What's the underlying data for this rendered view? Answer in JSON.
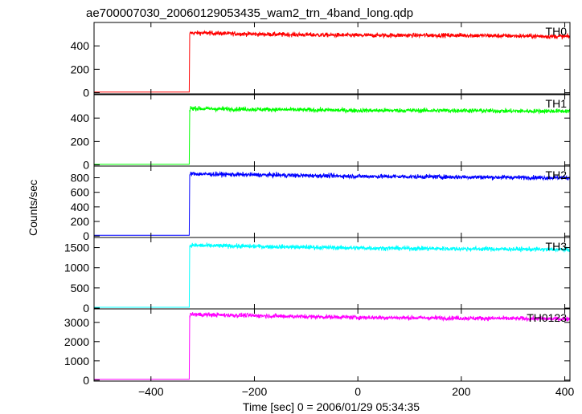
{
  "chart_data": {
    "type": "line",
    "title": "ae700007030_20060129053435_wam2_trn_4band_long.qdp",
    "xlabel": "Time [sec] 0 = 2006/01/29 05:34:35",
    "ylabel": "Counts/sec",
    "xlim": [
      -510,
      410
    ],
    "x_ticks": [
      -400,
      -200,
      0,
      200,
      400
    ],
    "x_tick_labels": [
      "−400",
      "−200",
      "0",
      "200",
      "400"
    ],
    "grid": false,
    "legend": "none",
    "onset_time": -325,
    "panels": [
      {
        "label": "TH0",
        "color": "#ff0000",
        "ylim": [
          -10,
          600
        ],
        "y_ticks": [
          0,
          200,
          400
        ],
        "series": [
          {
            "x": [
              -510,
              -326,
              -325,
              -323,
              -300,
              -200,
              -100,
              0,
              100,
              200,
              300,
              400
            ],
            "values": [
              5,
              5,
              500,
              510,
              510,
              500,
              495,
              490,
              490,
              490,
              485,
              480
            ]
          }
        ]
      },
      {
        "label": "TH1",
        "color": "#00ff00",
        "ylim": [
          -10,
          600
        ],
        "y_ticks": [
          0,
          200,
          400
        ],
        "series": [
          {
            "x": [
              -510,
              -326,
              -325,
              -323,
              -300,
              -200,
              -100,
              0,
              100,
              200,
              300,
              400
            ],
            "values": [
              5,
              5,
              470,
              485,
              480,
              475,
              470,
              465,
              465,
              465,
              460,
              460
            ]
          }
        ]
      },
      {
        "label": "TH2",
        "color": "#0000ff",
        "ylim": [
          -20,
          960
        ],
        "y_ticks": [
          0,
          200,
          400,
          600,
          800
        ],
        "series": [
          {
            "x": [
              -510,
              -326,
              -325,
              -323,
              -300,
              -200,
              -100,
              0,
              100,
              200,
              300,
              400
            ],
            "values": [
              10,
              10,
              840,
              855,
              850,
              840,
              830,
              820,
              815,
              810,
              805,
              800
            ]
          }
        ]
      },
      {
        "label": "TH3",
        "color": "#00ffff",
        "ylim": [
          -20,
          1750
        ],
        "y_ticks": [
          0,
          500,
          1000,
          1500
        ],
        "series": [
          {
            "x": [
              -510,
              -326,
              -325,
              -323,
              -300,
              -200,
              -100,
              0,
              100,
              200,
              300,
              400
            ],
            "values": [
              20,
              20,
              1530,
              1560,
              1550,
              1530,
              1510,
              1490,
              1480,
              1470,
              1460,
              1450
            ]
          }
        ]
      },
      {
        "label": "TH0123",
        "color": "#ff00ff",
        "ylim": [
          -50,
          3700
        ],
        "y_ticks": [
          0,
          1000,
          2000,
          3000
        ],
        "series": [
          {
            "x": [
              -510,
              -326,
              -325,
              -323,
              -300,
              -200,
              -100,
              0,
              100,
              200,
              300,
              400
            ],
            "values": [
              40,
              40,
              3350,
              3420,
              3400,
              3350,
              3300,
              3260,
              3240,
              3220,
              3200,
              3180
            ]
          }
        ]
      }
    ]
  }
}
